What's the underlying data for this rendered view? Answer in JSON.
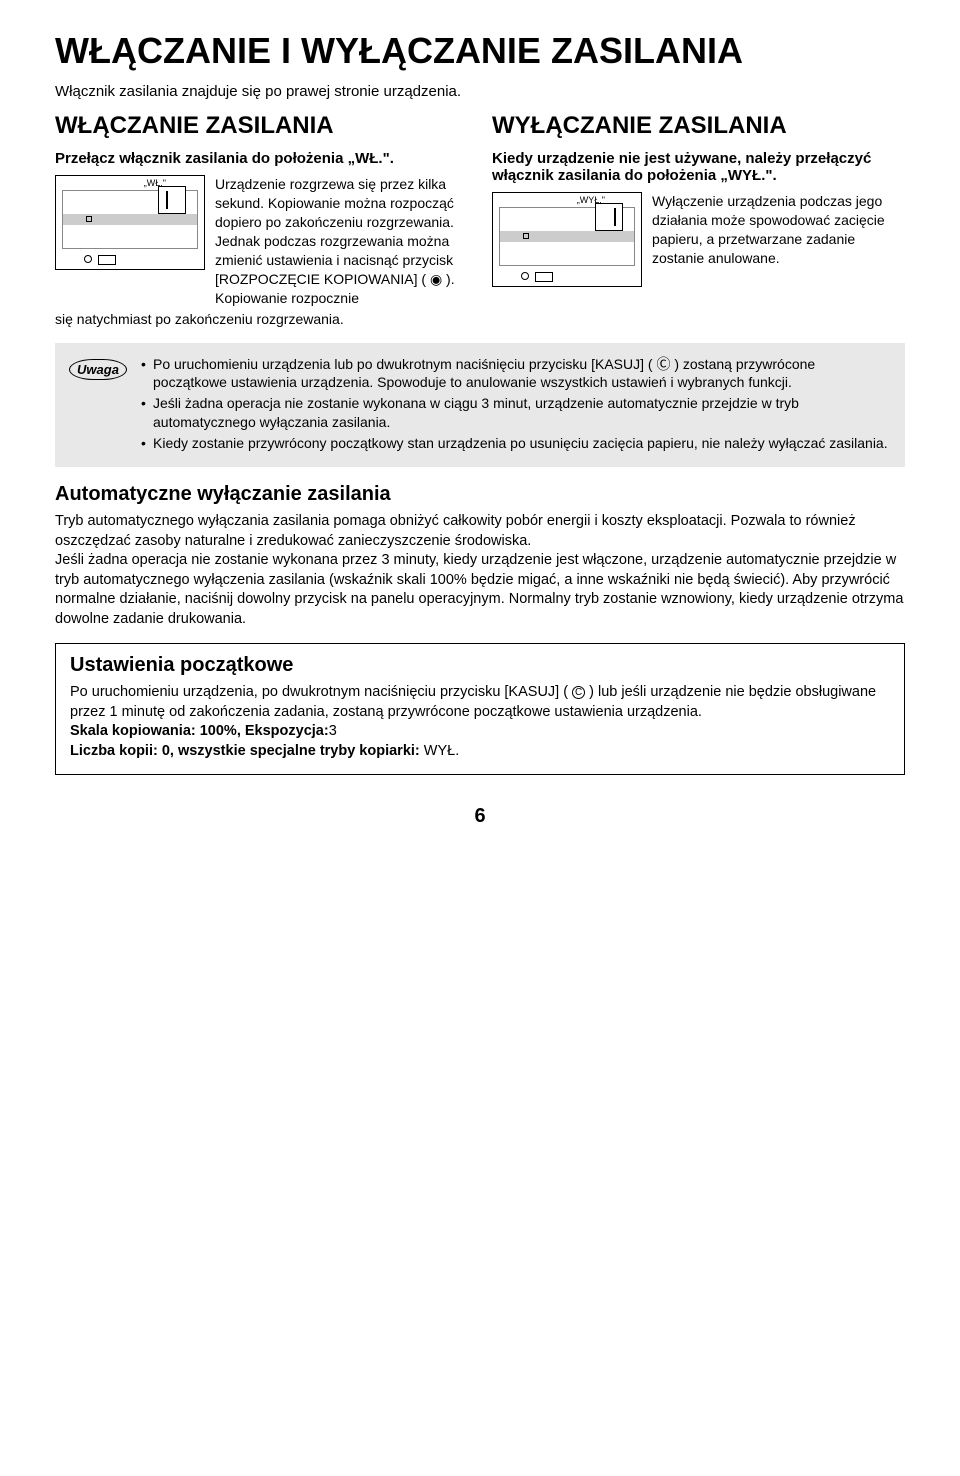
{
  "title": "WŁĄCZANIE I WYŁĄCZANIE ZASILANIA",
  "intro": "Włącznik zasilania znajduje się po prawej stronie urządzenia.",
  "on": {
    "heading": "WŁĄCZANIE ZASILANIA",
    "lead": "Przełącz włącznik zasilania do położenia „WŁ.\".",
    "switch_label": "„WŁ.\"",
    "para": "Urządzenie rozgrzewa się przez kilka sekund. Kopiowanie można rozpocząć dopiero po zakończeniu rozgrzewania. Jednak podczas rozgrzewania można zmienić ustawienia i nacisnąć przycisk [ROZPOCZĘCIE KOPIOWANIA] ( ◉ ). Kopiowanie rozpocznie",
    "cont": "się natychmiast po zakończeniu rozgrzewania."
  },
  "off": {
    "heading": "WYŁĄCZANIE ZASILANIA",
    "lead": "Kiedy urządzenie nie jest używane, należy przełączyć włącznik zasilania do położenia „WYŁ.\".",
    "switch_label": "„WYŁ.\"",
    "para": "Wyłączenie urządzenia podczas jego działania może spowodować zacięcie papieru, a przetwarzane zadanie zostanie anulowane."
  },
  "note": {
    "label": "Uwaga",
    "items": [
      "Po uruchomieniu urządzenia lub po dwukrotnym naciśnięciu przycisku [KASUJ] ( Ⓒ ) zostaną przywrócone początkowe ustawienia urządzenia. Spowoduje to anulowanie wszystkich ustawień i wybranych funkcji.",
      "Jeśli żadna operacja nie zostanie wykonana w ciągu 3 minut, urządzenie automatycznie przejdzie w tryb automatycznego wyłączania zasilania.",
      "Kiedy zostanie przywrócony początkowy stan urządzenia po usunięciu zacięcia papieru, nie należy wyłączać zasilania."
    ]
  },
  "auto": {
    "heading": "Automatyczne wyłączanie zasilania",
    "body": "Tryb automatycznego wyłączania zasilania pomaga obniżyć całkowity pobór energii i koszty eksploatacji. Pozwala to również oszczędzać zasoby naturalne i zredukować zanieczyszczenie środowiska.\nJeśli żadna operacja nie zostanie wykonana przez 3 minuty, kiedy urządzenie jest włączone, urządzenie automatycznie przejdzie w tryb automatycznego wyłączenia zasilania (wskaźnik skali 100% będzie migać, a inne wskaźniki nie będą świecić). Aby przywrócić normalne działanie, naciśnij dowolny przycisk na panelu operacyjnym. Normalny tryb zostanie wznowiony, kiedy urządzenie otrzyma dowolne zadanie drukowania."
  },
  "initial": {
    "heading": "Ustawienia początkowe",
    "body_pre": "Po uruchomieniu urządzenia, po dwukrotnym naciśnięciu przycisku [KASUJ] (",
    "body_post": ") lub jeśli urządzenie nie będzie obsługiwane przez 1 minutę od zakończenia zadania, zostaną przywrócone początkowe ustawienia urządzenia.",
    "line1_label": "Skala kopiowania: 100%, Ekspozycja:",
    "line1_val": "3",
    "line2_label": "Liczba kopii: 0, wszystkie specjalne tryby kopiarki:",
    "line2_val": " WYŁ."
  },
  "page_number": "6"
}
